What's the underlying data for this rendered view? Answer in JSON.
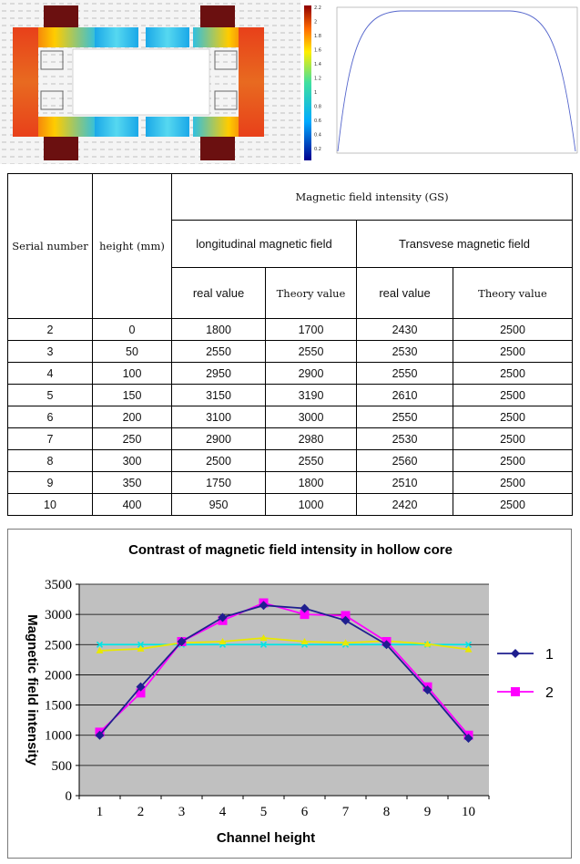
{
  "table": {
    "header": {
      "serial": "Serial number",
      "height": "height (mm)",
      "group": "Magnetic field intensity (GS)",
      "longitudinal": "longitudinal magnetic field",
      "transverse": "Transvese magnetic field",
      "real": "real value",
      "theory": "Theory value"
    },
    "rows": [
      [
        "2",
        "0",
        "1800",
        "1700",
        "2430",
        "2500"
      ],
      [
        "3",
        "50",
        "2550",
        "2550",
        "2530",
        "2500"
      ],
      [
        "4",
        "100",
        "2950",
        "2900",
        "2550",
        "2500"
      ],
      [
        "5",
        "150",
        "3150",
        "3190",
        "2610",
        "2500"
      ],
      [
        "6",
        "200",
        "3100",
        "3000",
        "2550",
        "2500"
      ],
      [
        "7",
        "250",
        "2900",
        "2980",
        "2530",
        "2500"
      ],
      [
        "8",
        "300",
        "2500",
        "2550",
        "2560",
        "2500"
      ],
      [
        "9",
        "350",
        "1750",
        "1800",
        "2510",
        "2500"
      ],
      [
        "10",
        "400",
        "950",
        "1000",
        "2420",
        "2500"
      ]
    ]
  },
  "sim_colorbar_ticks": [
    "2.2",
    "2",
    "1.8",
    "1.6",
    "1.4",
    "1.2",
    "1",
    "0.8",
    "0.6",
    "0.4",
    "0.2"
  ],
  "chart_data": {
    "type": "line",
    "title": "Contrast of magnetic field intensity in hollow core",
    "xlabel": "Channel height",
    "ylabel": "Magnetic field intensity",
    "x": [
      1,
      2,
      3,
      4,
      5,
      6,
      7,
      8,
      9,
      10
    ],
    "ylim": [
      0,
      3500
    ],
    "yticks": [
      0,
      500,
      1000,
      1500,
      2000,
      2500,
      3000,
      3500
    ],
    "grid": true,
    "legend_position": "right",
    "series": [
      {
        "name": "1",
        "color": "#1f1f8f",
        "marker": "diamond",
        "values": [
          1000,
          1800,
          2550,
          2950,
          3150,
          3100,
          2900,
          2500,
          1750,
          950
        ]
      },
      {
        "name": "2",
        "color": "#ff00ff",
        "marker": "square",
        "values": [
          1050,
          1700,
          2550,
          2900,
          3190,
          3000,
          2980,
          2550,
          1800,
          1000
        ]
      },
      {
        "color": "#e8e800",
        "marker": "triangle",
        "values": [
          2400,
          2430,
          2530,
          2550,
          2610,
          2550,
          2530,
          2560,
          2510,
          2420
        ]
      },
      {
        "color": "#00e5e5",
        "marker": "x",
        "values": [
          2500,
          2500,
          2500,
          2500,
          2500,
          2500,
          2500,
          2500,
          2500,
          2500
        ]
      }
    ]
  }
}
